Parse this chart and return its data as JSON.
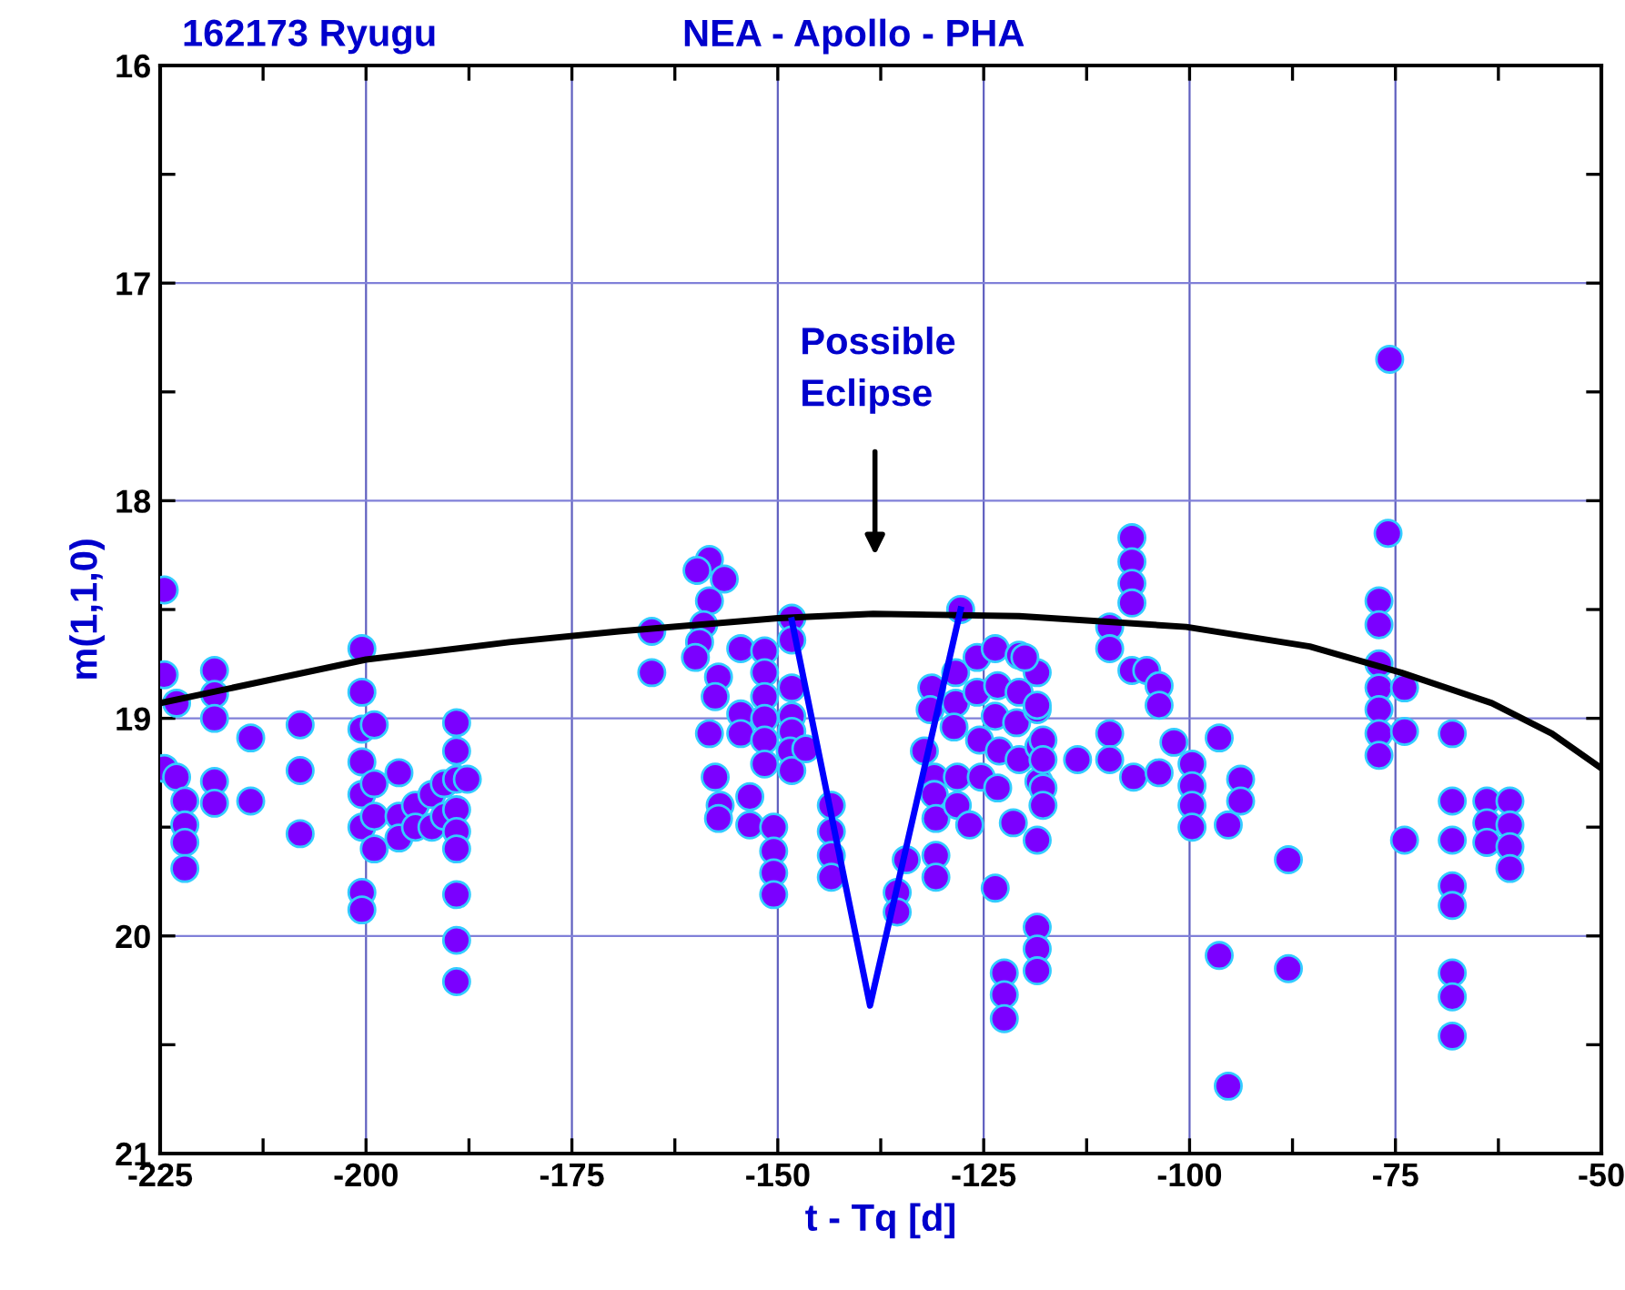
{
  "chart_data": {
    "type": "scatter",
    "title": "162173 Ryugu",
    "subtitle": "NEA - Apollo - PHA",
    "xlabel": "t - Tq [d]",
    "ylabel": "m(1,1,0)",
    "xlim": [
      -225,
      -50
    ],
    "ylim": [
      21,
      16
    ],
    "xticks": [
      -225,
      {
        "value": -212.5,
        "label": null
      },
      -200,
      {
        "value": -187.5,
        "label": null
      },
      -175,
      {
        "value": -162.5,
        "label": null
      },
      -150,
      {
        "value": -137.5,
        "label": null
      },
      -125,
      {
        "value": -112.5,
        "label": null
      },
      -100,
      {
        "value": -87.5,
        "label": null
      },
      -75,
      {
        "value": -62.5,
        "label": null
      },
      -50
    ],
    "yticks": [
      16,
      {
        "value": 16.5,
        "label": null
      },
      17,
      {
        "value": 17.5,
        "label": null
      },
      18,
      {
        "value": 18.5,
        "label": null
      },
      19,
      {
        "value": 19.5,
        "label": null
      },
      20,
      {
        "value": 20.5,
        "label": null
      },
      21
    ],
    "grid": true,
    "legend": false,
    "marker": "circle",
    "annotations": [
      "Possible\nEclipse"
    ],
    "series": [
      {
        "color": "#7b00ff",
        "x": [
          -224.5,
          -224.5,
          -223,
          -224.5,
          -223,
          -222,
          -222,
          -222,
          -222,
          -218.4,
          -218.4,
          -218.4,
          -218.4,
          -218.4,
          -214,
          -214,
          -208,
          -208,
          -208,
          -200.5,
          -200.5,
          -200.5,
          -200.5,
          -200.5,
          -200.5,
          -200.5,
          -200.5,
          -199,
          -199,
          -199,
          -199,
          -196,
          -196,
          -196,
          -194,
          -194,
          -192,
          -192,
          -190.5,
          -190.5,
          -189,
          -189,
          -189,
          -189,
          -189,
          -189,
          -189,
          -189,
          -189,
          -187.7,
          -165.3,
          -165.3,
          -158.3,
          -156.5,
          -159.8,
          -158.3,
          -159,
          -159.5,
          -160,
          -157.2,
          -157.6,
          -158.3,
          -157.6,
          -157,
          -157.2,
          -154.5,
          -154.5,
          -154.5,
          -153.4,
          -153.4,
          -151.6,
          -151.6,
          -151.6,
          -151.6,
          -151.6,
          -151.6,
          -150.5,
          -150.5,
          -150.5,
          -150.5,
          -148.3,
          -148.3,
          -148.3,
          -148.3,
          -148.3,
          -148.5,
          -148.3,
          -146.6,
          -143.5,
          -143.5,
          -143.5,
          -143.5,
          -135.5,
          -135.5,
          -134.4,
          -131.3,
          -131.5,
          -132.2,
          -131,
          -131,
          -130.8,
          -130.8,
          -130.8,
          -127.8,
          -128.4,
          -128.4,
          -128.6,
          -128.2,
          -128.2,
          -126.7,
          -125.8,
          -125.8,
          -125.5,
          -125.3,
          -123.6,
          -123.3,
          -123.6,
          -123.1,
          -123.3,
          -123.6,
          -122.5,
          -122.5,
          -122.5,
          -120.7,
          -120.7,
          -121,
          -120.7,
          -121.4,
          -118.5,
          -118.5,
          -118.3,
          -118.3,
          -118.5,
          -118.5,
          -118.5,
          -118.5,
          -120,
          -118.5,
          -117.8,
          -117.8,
          -117.8,
          -117.8,
          -113.6,
          -109.7,
          -109.7,
          -109.7,
          -109.7,
          -107,
          -107,
          -107,
          -107,
          -107,
          -106.8,
          -105.2,
          -103.7,
          -103.7,
          -103.7,
          -101.9,
          -99.7,
          -99.7,
          -99.7,
          -99.7,
          -96.4,
          -96.4,
          -95.3,
          -95.3,
          -93.8,
          -93.8,
          -88,
          -88,
          -75.7,
          -75.9,
          -77,
          -77,
          -77,
          -77,
          -77,
          -77,
          -77,
          -73.9,
          -73.9,
          -73.9,
          -68.1,
          -68.1,
          -68.1,
          -68.1,
          -68.1,
          -68.1,
          -68.1,
          -68.1,
          -63.9,
          -63.9,
          -63.9,
          -61.1,
          -61.1,
          -61.1,
          -61.1
        ],
        "values": [
          18.41,
          18.8,
          18.93,
          19.23,
          19.27,
          19.38,
          19.49,
          19.57,
          19.69,
          18.78,
          18.89,
          19.0,
          19.29,
          19.39,
          19.09,
          19.38,
          19.03,
          19.24,
          19.53,
          18.68,
          18.88,
          19.05,
          19.2,
          19.35,
          19.5,
          19.8,
          19.88,
          19.03,
          19.3,
          19.45,
          19.6,
          19.25,
          19.45,
          19.55,
          19.4,
          19.5,
          19.35,
          19.5,
          19.3,
          19.45,
          19.02,
          19.15,
          19.28,
          19.42,
          19.52,
          19.6,
          19.81,
          20.02,
          20.21,
          19.28,
          18.6,
          18.79,
          18.27,
          18.36,
          18.32,
          18.46,
          18.57,
          18.65,
          18.72,
          18.81,
          18.9,
          19.07,
          19.27,
          19.4,
          19.46,
          18.68,
          18.98,
          19.07,
          19.36,
          19.49,
          18.69,
          18.79,
          18.9,
          19.0,
          19.1,
          19.21,
          19.5,
          19.61,
          19.71,
          19.81,
          18.54,
          18.64,
          18.86,
          18.99,
          19.06,
          19.15,
          19.24,
          19.14,
          19.4,
          19.52,
          19.63,
          19.73,
          19.8,
          19.89,
          19.65,
          18.86,
          18.96,
          19.15,
          19.27,
          19.35,
          19.46,
          19.63,
          19.73,
          18.5,
          18.79,
          18.93,
          19.04,
          19.27,
          19.4,
          19.49,
          18.72,
          18.88,
          19.1,
          19.27,
          18.68,
          18.85,
          18.99,
          19.15,
          19.32,
          19.78,
          20.17,
          20.27,
          20.38,
          18.71,
          18.88,
          19.02,
          19.19,
          19.48,
          18.79,
          18.96,
          19.13,
          19.29,
          19.56,
          19.96,
          20.06,
          20.16,
          18.72,
          18.94,
          19.1,
          19.19,
          19.32,
          19.4,
          19.19,
          19.07,
          19.19,
          18.58,
          18.68,
          18.17,
          18.28,
          18.38,
          18.47,
          18.78,
          19.27,
          18.78,
          18.85,
          18.94,
          19.25,
          19.11,
          19.21,
          19.31,
          19.4,
          19.5,
          19.09,
          20.09,
          20.69,
          19.49,
          19.28,
          19.38,
          19.65,
          20.15,
          17.35,
          18.15,
          18.46,
          18.57,
          18.75,
          18.86,
          18.96,
          19.07,
          19.17,
          18.86,
          19.06,
          19.56,
          19.07,
          19.38,
          19.56,
          19.77,
          19.86,
          20.17,
          20.28,
          20.46,
          19.38,
          19.48,
          19.57,
          19.38,
          19.49,
          19.59,
          19.69
        ]
      },
      {
        "type": "line",
        "color": "#000000",
        "marker": "none",
        "x": [
          -225,
          -200,
          -182.6,
          -169.3,
          -150,
          -138.4,
          -120.7,
          -100.4,
          -85.4,
          -74.3,
          -63.3,
          -56,
          -50
        ],
        "values": [
          18.93,
          18.73,
          18.65,
          18.6,
          18.54,
          18.52,
          18.53,
          18.58,
          18.67,
          18.79,
          18.93,
          19.07,
          19.23
        ]
      },
      {
        "type": "line",
        "color": "#0000ff",
        "marker": "none",
        "x": [
          -148.3,
          -138.8,
          -127.8
        ],
        "values": [
          18.55,
          20.32,
          18.5
        ]
      }
    ]
  }
}
